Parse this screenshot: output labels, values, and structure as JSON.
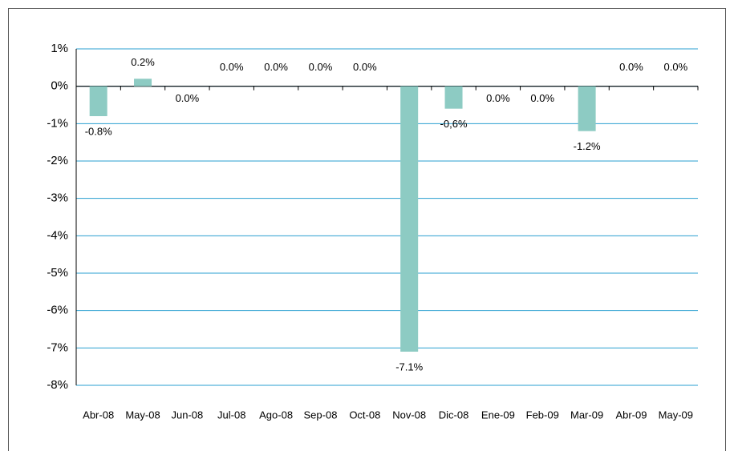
{
  "chart_data": {
    "type": "bar",
    "categories": [
      "Abr-08",
      "May-08",
      "Jun-08",
      "Jul-08",
      "Ago-08",
      "Sep-08",
      "Oct-08",
      "Nov-08",
      "Dic-08",
      "Ene-09",
      "Feb-09",
      "Mar-09",
      "Abr-09",
      "May-09"
    ],
    "values": [
      -0.8,
      0.2,
      0.0,
      0.0,
      0.0,
      0.0,
      0.0,
      -7.1,
      -0.6,
      0.0,
      0.0,
      -1.2,
      0.0,
      0.0
    ],
    "value_labels": [
      "-0.8%",
      "0.2%",
      "0.0%",
      "0.0%",
      "0.0%",
      "0.0%",
      "0.0%",
      "-7.1%",
      "-0,6%",
      "0.0%",
      "0.0%",
      "-1.2%",
      "0.0%",
      "0.0%"
    ],
    "color": "#8dcbc3",
    "ylim": [
      -8,
      1
    ],
    "yticks": [
      {
        "value": 1,
        "label": "1%"
      },
      {
        "value": 0,
        "label": "0%"
      },
      {
        "value": -1,
        "label": "-1%"
      },
      {
        "value": -2,
        "label": "-2%"
      },
      {
        "value": -3,
        "label": "-3%"
      },
      {
        "value": -4,
        "label": "-4%"
      },
      {
        "value": -5,
        "label": "-5%"
      },
      {
        "value": -6,
        "label": "-6%"
      },
      {
        "value": -7,
        "label": "-7%"
      },
      {
        "value": -8,
        "label": "-8%"
      }
    ],
    "grid": true
  }
}
